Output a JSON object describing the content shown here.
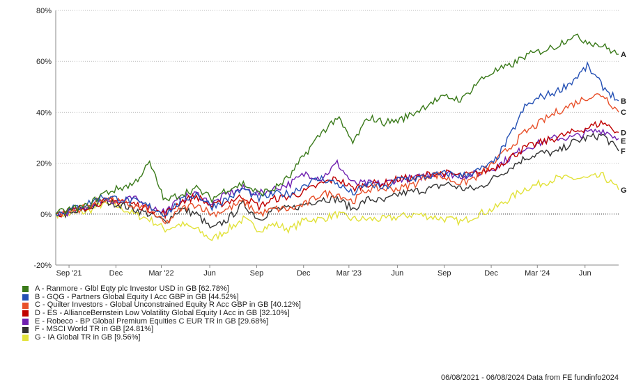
{
  "chart_data": {
    "type": "line",
    "ylim": [
      -20,
      80
    ],
    "yticks": [
      -20,
      0,
      20,
      40,
      60,
      80
    ],
    "ytick_labels": [
      "-20%",
      "0%",
      "20%",
      "40%",
      "60%",
      "80%"
    ],
    "xticks": [
      {
        "label": "Sep '21",
        "month": 0.85
      },
      {
        "label": "Dec",
        "month": 3.85
      },
      {
        "label": "Mar '22",
        "month": 6.75
      },
      {
        "label": "Jun",
        "month": 9.85
      },
      {
        "label": "Sep",
        "month": 12.85
      },
      {
        "label": "Dec",
        "month": 15.85
      },
      {
        "label": "Mar '23",
        "month": 18.75
      },
      {
        "label": "Jun",
        "month": 21.85
      },
      {
        "label": "Sep",
        "month": 24.85
      },
      {
        "label": "Dec",
        "month": 27.85
      },
      {
        "label": "Mar '24",
        "month": 30.8
      },
      {
        "label": "Jun",
        "month": 33.85
      }
    ],
    "x_unit": "months since 06/08/2021",
    "grid": true,
    "legend_position": "bottom-left",
    "series": [
      {
        "key": "A",
        "name": "A - Ranmore - Glbl Eqty plc Investor USD in GB [62.78%]",
        "color": "#3a7a1a",
        "values": [
          0,
          2,
          3,
          8,
          10,
          12,
          20,
          5,
          8,
          10,
          6,
          10,
          12,
          8,
          10,
          15,
          24,
          32,
          38,
          28,
          38,
          36,
          37,
          40,
          44,
          46,
          45,
          52,
          56,
          58,
          62,
          64,
          66,
          70,
          68,
          66,
          62.78
        ]
      },
      {
        "key": "B",
        "name": "B - GQG - Partners Global Equity I Acc GBP in GB [44.52%]",
        "color": "#2450b4",
        "values": [
          0,
          2,
          4,
          7,
          6,
          5,
          3,
          0,
          5,
          8,
          3,
          6,
          10,
          6,
          8,
          8,
          12,
          14,
          12,
          8,
          12,
          10,
          14,
          14,
          15,
          16,
          15,
          17,
          20,
          30,
          42,
          46,
          48,
          52,
          58,
          50,
          44.52
        ]
      },
      {
        "key": "C",
        "name": "C - Quilter Investors - Global Unconstrained Equity R Acc GBP in GB [40.12%]",
        "color": "#e8502a",
        "values": [
          0,
          1,
          3,
          6,
          5,
          3,
          2,
          -4,
          2,
          4,
          0,
          2,
          5,
          0,
          2,
          2,
          4,
          8,
          8,
          5,
          10,
          10,
          10,
          12,
          16,
          14,
          12,
          15,
          20,
          26,
          32,
          36,
          40,
          43,
          46,
          47,
          40.12
        ]
      },
      {
        "key": "D",
        "name": "D - ES - AllianceBernstein Low Volatility Global Equity I Acc in GB [32.10%]",
        "color": "#c00000",
        "values": [
          0,
          1,
          3,
          5,
          5,
          4,
          2,
          0,
          5,
          7,
          3,
          5,
          7,
          3,
          6,
          7,
          9,
          12,
          14,
          10,
          12,
          12,
          14,
          14,
          16,
          16,
          15,
          16,
          18,
          22,
          26,
          28,
          30,
          32,
          34,
          36,
          32.1
        ]
      },
      {
        "key": "E",
        "name": "E - Robeco - BP Global Premium Equities C EUR TR in GB [29.68%]",
        "color": "#7020b0",
        "values": [
          0,
          1,
          3,
          6,
          5,
          6,
          3,
          1,
          6,
          8,
          4,
          8,
          10,
          8,
          10,
          12,
          16,
          14,
          20,
          12,
          12,
          12,
          14,
          14,
          16,
          16,
          15,
          16,
          18,
          22,
          26,
          28,
          30,
          30,
          32,
          33,
          29.68
        ]
      },
      {
        "key": "F",
        "name": "F - MSCI World TR in GB [24.81%]",
        "color": "#333333",
        "values": [
          0,
          0,
          2,
          5,
          4,
          2,
          0,
          -3,
          2,
          0,
          -6,
          -2,
          4,
          -2,
          2,
          2,
          4,
          6,
          6,
          2,
          6,
          5,
          8,
          9,
          10,
          12,
          10,
          10,
          14,
          18,
          22,
          24,
          24,
          28,
          30,
          31,
          24.81
        ]
      },
      {
        "key": "G",
        "name": "G - IA Global TR in GB [9.56%]",
        "color": "#e2e23a",
        "values": [
          0,
          0,
          1,
          4,
          3,
          0,
          -2,
          -6,
          -4,
          -6,
          -10,
          -6,
          -2,
          -6,
          -4,
          -6,
          -2,
          -2,
          0,
          -2,
          -2,
          -2,
          -1,
          0,
          -1,
          -2,
          -3,
          0,
          2,
          6,
          10,
          12,
          14,
          14,
          14,
          15,
          9.56
        ]
      }
    ]
  },
  "footer": "06/08/2021 - 06/08/2024 Data from FE fundinfo2024"
}
